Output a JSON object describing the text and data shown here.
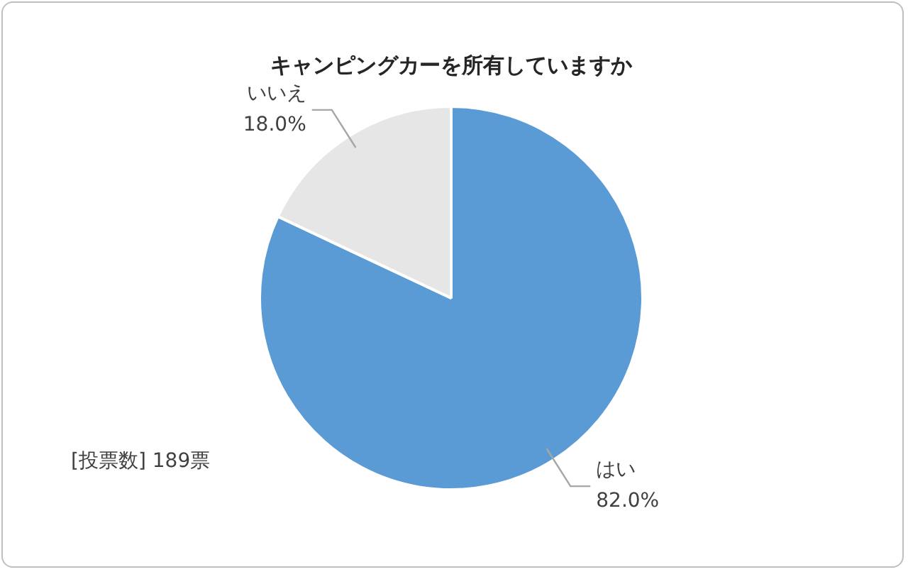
{
  "chart_data": {
    "type": "pie",
    "title": "キャンピングカーを所有していますか",
    "categories": [
      "はい",
      "いいえ"
    ],
    "values": [
      82.0,
      18.0
    ],
    "colors": [
      "#5b9bd5",
      "#e7e6e6"
    ],
    "value_labels": [
      "82.0%",
      "18.0%"
    ],
    "legend": false,
    "annotations": [
      "[投票数] 189票"
    ]
  }
}
